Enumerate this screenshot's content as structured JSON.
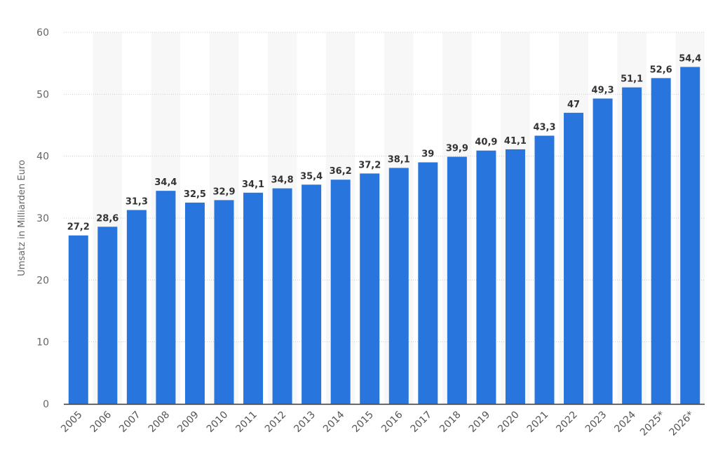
{
  "chart_data": {
    "type": "bar",
    "title": "",
    "xlabel": "",
    "ylabel": "Umsatz in Milliarden Euro",
    "ylim": [
      0,
      60
    ],
    "yticks": [
      0,
      10,
      20,
      30,
      40,
      50,
      60
    ],
    "grid": true,
    "categories": [
      "2005",
      "2006",
      "2007",
      "2008",
      "2009",
      "2010",
      "2011",
      "2012",
      "2013",
      "2014",
      "2015",
      "2016",
      "2017",
      "2018",
      "2019",
      "2020",
      "2021",
      "2022",
      "2023",
      "2024",
      "2025*",
      "2026*"
    ],
    "values": [
      27.2,
      28.6,
      31.3,
      34.4,
      32.5,
      32.9,
      34.1,
      34.8,
      35.4,
      36.2,
      37.2,
      38.1,
      39,
      39.9,
      40.9,
      41.1,
      43.3,
      47,
      49.3,
      51.1,
      52.6,
      54.4
    ],
    "value_labels": [
      "27,2",
      "28,6",
      "31,3",
      "34,4",
      "32,5",
      "32,9",
      "34,1",
      "34,8",
      "35,4",
      "36,2",
      "37,2",
      "38,1",
      "39",
      "39,9",
      "40,9",
      "41,1",
      "43,3",
      "47",
      "49,3",
      "51,1",
      "52,6",
      "54,4"
    ],
    "colors": {
      "bar": "#2876dd",
      "band": "#f7f7f7",
      "grid": "#cccccc",
      "axis": "#333333"
    }
  }
}
